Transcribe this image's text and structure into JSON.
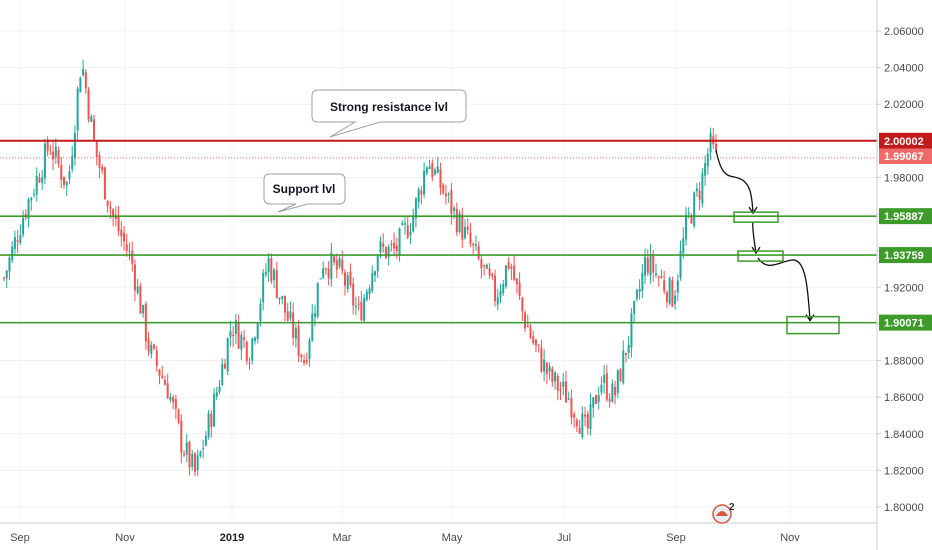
{
  "chart_data": {
    "type": "candlestick",
    "x_ticks": [
      "Sep",
      "Nov",
      "2019",
      "Mar",
      "May",
      "Jul",
      "Sep",
      "Nov"
    ],
    "y_ticks": [
      "2.06000",
      "2.04000",
      "2.02000",
      "2.00000",
      "1.98000",
      "1.96000",
      "1.94000",
      "1.92000",
      "1.90000",
      "1.88000",
      "1.86000",
      "1.84000",
      "1.82000",
      "1.80000"
    ],
    "ylim": [
      1.79,
      2.07
    ],
    "last_price": "1.99067",
    "levels": [
      {
        "value": 2.00002,
        "label": "2.00002",
        "kind": "resistance",
        "color": "#c21a1a"
      },
      {
        "value": 1.95887,
        "label": "1.95887",
        "kind": "support",
        "color": "#3d9b2a"
      },
      {
        "value": 1.93759,
        "label": "1.93759",
        "kind": "support",
        "color": "#3d9b2a"
      },
      {
        "value": 1.90071,
        "label": "1.90071",
        "kind": "support",
        "color": "#3d9b2a"
      }
    ],
    "annotations": [
      {
        "text": "Strong resistance lvl"
      },
      {
        "text": "Support lvl"
      }
    ],
    "path_points": [
      [
        0.0,
        1.925
      ],
      [
        0.02,
        1.958
      ],
      [
        0.05,
        1.998
      ],
      [
        0.07,
        1.975
      ],
      [
        0.085,
        2.045
      ],
      [
        0.1,
        1.995
      ],
      [
        0.12,
        1.958
      ],
      [
        0.14,
        1.935
      ],
      [
        0.16,
        1.885
      ],
      [
        0.18,
        1.865
      ],
      [
        0.195,
        1.835
      ],
      [
        0.21,
        1.818
      ],
      [
        0.23,
        1.855
      ],
      [
        0.25,
        1.9
      ],
      [
        0.27,
        1.885
      ],
      [
        0.29,
        1.935
      ],
      [
        0.31,
        1.905
      ],
      [
        0.33,
        1.88
      ],
      [
        0.35,
        1.935
      ],
      [
        0.37,
        1.928
      ],
      [
        0.39,
        1.905
      ],
      [
        0.41,
        1.94
      ],
      [
        0.43,
        1.94
      ],
      [
        0.45,
        1.96
      ],
      [
        0.465,
        1.99
      ],
      [
        0.48,
        1.975
      ],
      [
        0.5,
        1.955
      ],
      [
        0.52,
        1.935
      ],
      [
        0.54,
        1.915
      ],
      [
        0.555,
        1.935
      ],
      [
        0.57,
        1.905
      ],
      [
        0.585,
        1.885
      ],
      [
        0.6,
        1.87
      ],
      [
        0.62,
        1.86
      ],
      [
        0.64,
        1.84
      ],
      [
        0.655,
        1.87
      ],
      [
        0.67,
        1.86
      ],
      [
        0.69,
        1.9
      ],
      [
        0.705,
        1.935
      ],
      [
        0.72,
        1.925
      ],
      [
        0.735,
        1.915
      ],
      [
        0.75,
        1.955
      ],
      [
        0.765,
        1.975
      ],
      [
        0.775,
        1.998
      ],
      [
        0.782,
        1.99
      ]
    ],
    "projection_boxes": [
      1.95887,
      1.93759,
      1.90071
    ]
  },
  "badge": {
    "count": "2"
  }
}
